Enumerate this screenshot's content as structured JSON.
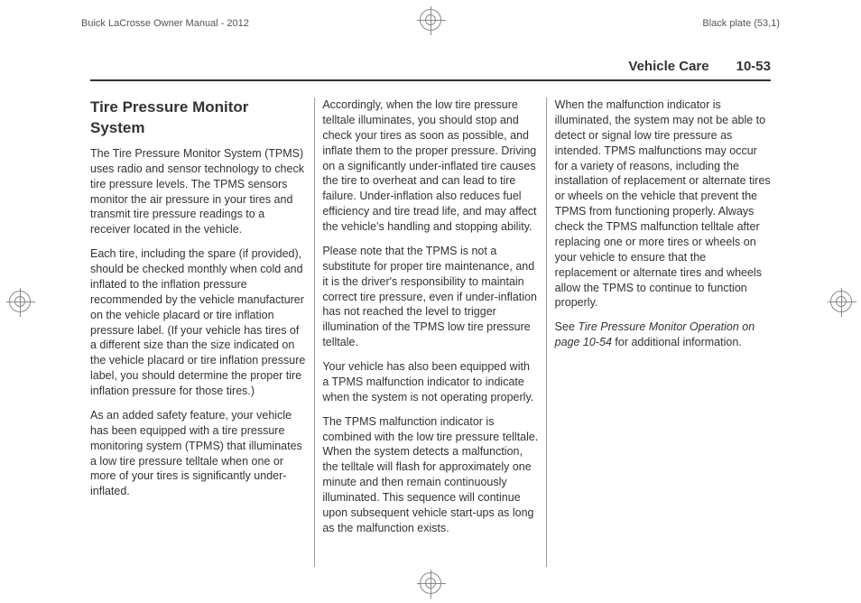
{
  "printHeader": {
    "left": "Buick LaCrosse Owner Manual - 2012",
    "right": "Black plate (53,1)"
  },
  "runningHead": {
    "section": "Vehicle Care",
    "pageNum": "10-53"
  },
  "title": "Tire Pressure Monitor System",
  "paragraphs": {
    "p1": "The Tire Pressure Monitor System (TPMS) uses radio and sensor technology to check tire pressure levels. The TPMS sensors monitor the air pressure in your tires and transmit tire pressure readings to a receiver located in the vehicle.",
    "p2": "Each tire, including the spare (if provided), should be checked monthly when cold and inflated to the inflation pressure recommended by the vehicle manufacturer on the vehicle placard or tire inflation pressure label. (If your vehicle has tires of a different size than the size indicated on the vehicle placard or tire inflation pressure label, you should determine the proper tire inflation pressure for those tires.)",
    "p3": "As an added safety feature, your vehicle has been equipped with a tire pressure monitoring system (TPMS) that illuminates a low tire pressure telltale when one or more of your tires is significantly under-inflated.",
    "p4": "Accordingly, when the low tire pressure telltale illuminates, you should stop and check your tires as soon as possible, and inflate them to the proper pressure. Driving on a significantly under-inflated tire causes the tire to overheat and can lead to tire failure. Under-inflation also reduces fuel efficiency and tire tread life, and may affect the vehicle's handling and stopping ability.",
    "p5": "Please note that the TPMS is not a substitute for proper tire maintenance, and it is the driver's responsibility to maintain correct tire pressure, even if under-inflation has not reached the level to trigger illumination of the TPMS low tire pressure telltale.",
    "p6": "Your vehicle has also been equipped with a TPMS malfunction indicator to indicate when the system is not operating properly.",
    "p7": "The TPMS malfunction indicator is combined with the low tire pressure telltale. When the system detects a malfunction, the telltale will flash for approximately one minute and then remain continuously illuminated. This sequence will continue upon subsequent vehicle start-ups as long as the malfunction exists.",
    "p8": "When the malfunction indicator is illuminated, the system may not be able to detect or signal low tire pressure as intended. TPMS malfunctions may occur for a variety of reasons, including the installation of replacement or alternate tires or wheels on the vehicle that prevent the TPMS from functioning properly. Always check the TPMS malfunction telltale after replacing one or more tires or wheels on your vehicle to ensure that the replacement or alternate tires and wheels allow the TPMS to continue to function properly.",
    "p9a": "See ",
    "p9ref": "Tire Pressure Monitor Operation on page 10-54",
    "p9b": " for additional information."
  }
}
